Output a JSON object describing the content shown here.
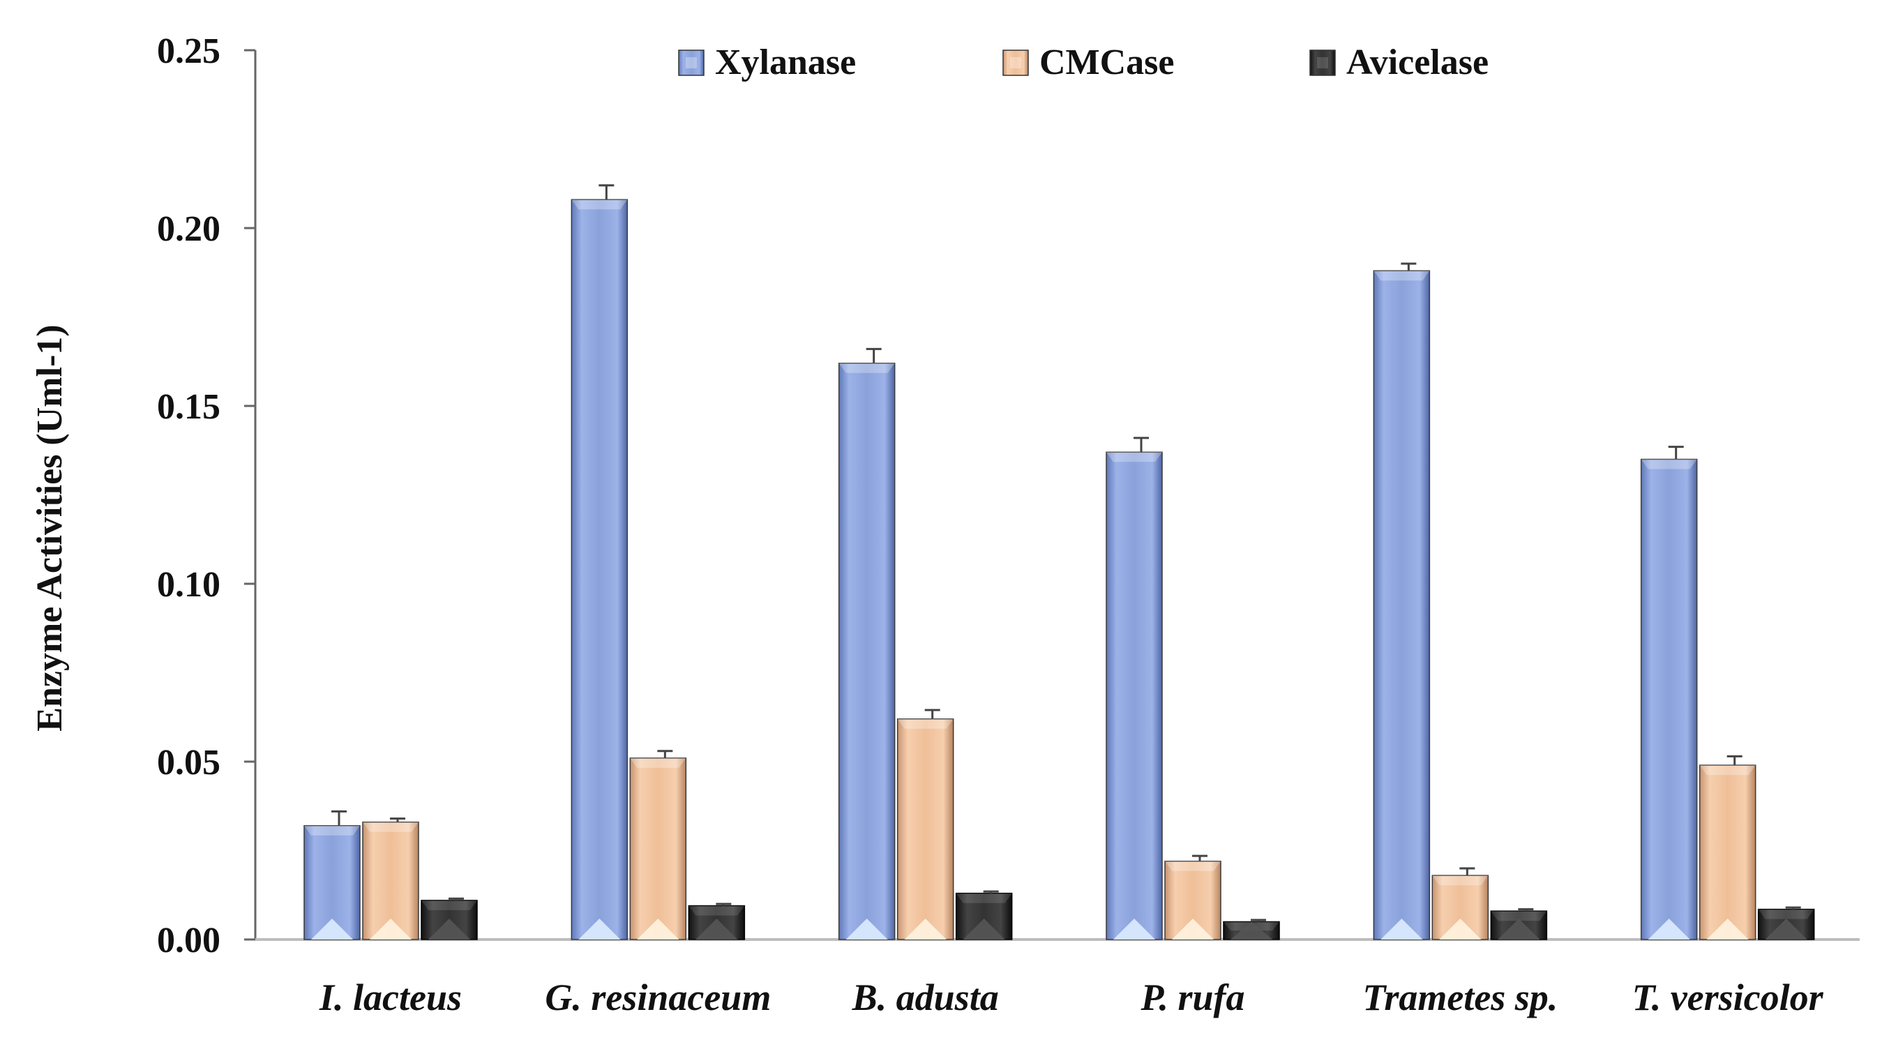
{
  "chart_data": {
    "type": "bar",
    "title": "",
    "xlabel": "",
    "ylabel": "Enzyme Activities (Uml-1)",
    "ylim": [
      0,
      0.25
    ],
    "yticks": [
      "0.00",
      "0.05",
      "0.10",
      "0.15",
      "0.20",
      "0.25"
    ],
    "grid": false,
    "legend_position": "top",
    "categories": [
      "I. lacteus",
      "G. resinaceum",
      "B. adusta",
      "P. rufa",
      "Trametes sp.",
      "T. versicolor"
    ],
    "series": [
      {
        "name": "Xylanase",
        "color": "#8fa6dc",
        "values": [
          0.032,
          0.208,
          0.162,
          0.137,
          0.188,
          0.135
        ],
        "errors": [
          0.004,
          0.004,
          0.004,
          0.004,
          0.002,
          0.0035
        ]
      },
      {
        "name": "CMCase",
        "color": "#f0c09a",
        "values": [
          0.033,
          0.051,
          0.062,
          0.022,
          0.018,
          0.049
        ],
        "errors": [
          0.001,
          0.002,
          0.0025,
          0.0015,
          0.002,
          0.0025
        ]
      },
      {
        "name": "Avicelase",
        "color": "#2b2b2b",
        "values": [
          0.011,
          0.0095,
          0.013,
          0.005,
          0.008,
          0.0085
        ],
        "errors": [
          0.0005,
          0.0005,
          0.0005,
          0.0005,
          0.0005,
          0.0005
        ]
      }
    ]
  }
}
